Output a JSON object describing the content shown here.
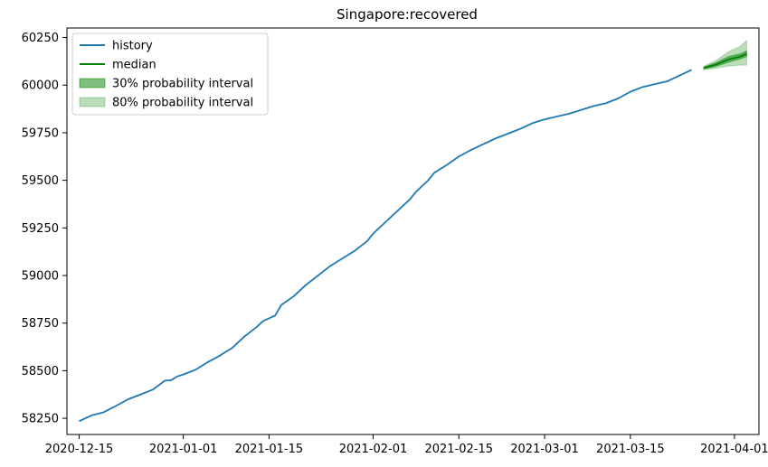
{
  "chart_data": {
    "type": "line",
    "title": "Singapore:recovered",
    "xlabel": "",
    "ylabel": "",
    "x_range": [
      "2020-12-13",
      "2021-04-05"
    ],
    "ylim": [
      58165,
      60300
    ],
    "x_ticks": [
      "2020-12-15",
      "2021-01-01",
      "2021-01-15",
      "2021-02-01",
      "2021-02-15",
      "2021-03-01",
      "2021-03-15",
      "2021-04-01"
    ],
    "y_ticks": [
      58250,
      58500,
      58750,
      59000,
      59250,
      59500,
      59750,
      60000,
      60250
    ],
    "grid": false,
    "legend": {
      "position": "top-left",
      "entries": [
        "history",
        "median",
        "30% probability interval",
        "80% probability interval"
      ]
    },
    "colors": {
      "history": "#1f77b4",
      "median": "#008000",
      "interval_30": "#008000",
      "interval_80": "#008000"
    },
    "series": [
      {
        "name": "history",
        "x": [
          "2020-12-15",
          "2020-12-17",
          "2020-12-19",
          "2020-12-21",
          "2020-12-23",
          "2020-12-25",
          "2020-12-27",
          "2020-12-29",
          "2020-12-30",
          "2020-12-31",
          "2021-01-01",
          "2021-01-03",
          "2021-01-05",
          "2021-01-07",
          "2021-01-09",
          "2021-01-11",
          "2021-01-13",
          "2021-01-14",
          "2021-01-16",
          "2021-01-17",
          "2021-01-19",
          "2021-01-21",
          "2021-01-23",
          "2021-01-25",
          "2021-01-27",
          "2021-01-29",
          "2021-01-31",
          "2021-02-01",
          "2021-02-03",
          "2021-02-05",
          "2021-02-07",
          "2021-02-08",
          "2021-02-10",
          "2021-02-11",
          "2021-02-13",
          "2021-02-15",
          "2021-02-17",
          "2021-02-19",
          "2021-02-21",
          "2021-02-23",
          "2021-02-25",
          "2021-02-27",
          "2021-03-01",
          "2021-03-03",
          "2021-03-05",
          "2021-03-07",
          "2021-03-09",
          "2021-03-11",
          "2021-03-13",
          "2021-03-15",
          "2021-03-17",
          "2021-03-19",
          "2021-03-21",
          "2021-03-23",
          "2021-03-25"
        ],
        "values": [
          58235,
          58265,
          58282,
          58315,
          58350,
          58375,
          58400,
          58448,
          58450,
          58470,
          58480,
          58505,
          58545,
          58580,
          58620,
          58680,
          58730,
          58760,
          58790,
          58845,
          58890,
          58950,
          59000,
          59050,
          59090,
          59130,
          59180,
          59220,
          59280,
          59340,
          59400,
          59440,
          59500,
          59540,
          59580,
          59625,
          59660,
          59690,
          59720,
          59745,
          59770,
          59800,
          59820,
          59835,
          59850,
          59870,
          59890,
          59905,
          59930,
          59965,
          59990,
          60005,
          60020,
          60050,
          60080
        ]
      },
      {
        "name": "median",
        "x": [
          "2021-03-27",
          "2021-03-29",
          "2021-03-31",
          "2021-04-02",
          "2021-04-03"
        ],
        "values": [
          60090,
          60108,
          60135,
          60150,
          60165
        ]
      }
    ],
    "intervals": [
      {
        "name": "30% probability interval",
        "x": [
          "2021-03-27",
          "2021-03-29",
          "2021-03-31",
          "2021-04-02",
          "2021-04-03"
        ],
        "lower": [
          60085,
          60098,
          60120,
          60138,
          60150
        ],
        "upper": [
          60095,
          60118,
          60150,
          60165,
          60180
        ]
      },
      {
        "name": "80% probability interval",
        "x": [
          "2021-03-27",
          "2021-03-29",
          "2021-03-31",
          "2021-04-02",
          "2021-04-03"
        ],
        "lower": [
          60080,
          60088,
          60100,
          60105,
          60105
        ],
        "upper": [
          60100,
          60130,
          60175,
          60205,
          60235
        ]
      }
    ]
  }
}
